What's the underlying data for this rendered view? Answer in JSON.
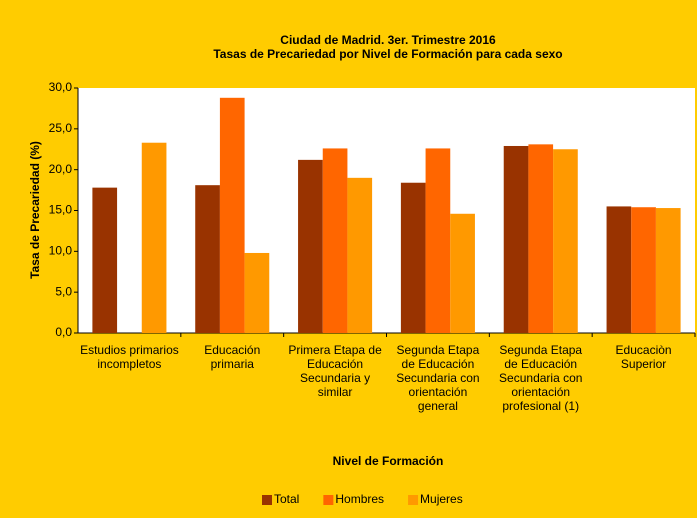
{
  "chart_data": {
    "type": "bar",
    "title": "Ciudad de Madrid. 3er. Trimestre 2016",
    "subtitle": "Tasas de Precariedad por Nivel de Formación para cada sexo",
    "x_label": "Nivel de Formación",
    "y_label": "Tasa de Precariedad (%)",
    "categories": [
      "Estudios primarios incompletos",
      "Educación primaria",
      "Primera Etapa de Educación Secundaria y similar",
      "Segunda Etapa de Educación Secundaria con orientación general",
      "Segunda Etapa de Educación Secundaria con orientación profesional (1)",
      "Educaciòn Superior"
    ],
    "series": [
      {
        "name": "Total",
        "color": "#993300",
        "values": [
          17.8,
          18.1,
          21.2,
          18.4,
          22.9,
          15.5
        ]
      },
      {
        "name": "Hombres",
        "color": "#ff6600",
        "values": [
          null,
          28.8,
          22.6,
          22.6,
          23.1,
          15.4
        ]
      },
      {
        "name": "Mujeres",
        "color": "#ff9900",
        "values": [
          23.3,
          9.8,
          19.0,
          14.6,
          22.5,
          15.3
        ]
      }
    ],
    "ylim": [
      0,
      30
    ],
    "yticks": [
      {
        "value": 0,
        "label": "0,0"
      },
      {
        "value": 5,
        "label": "5,0"
      },
      {
        "value": 10,
        "label": "10,0"
      },
      {
        "value": 15,
        "label": "15,0"
      },
      {
        "value": 20,
        "label": "20,0"
      },
      {
        "value": 25,
        "label": "25,0"
      },
      {
        "value": 30,
        "label": "30,0"
      }
    ],
    "grid": false,
    "legend": "bottom"
  }
}
